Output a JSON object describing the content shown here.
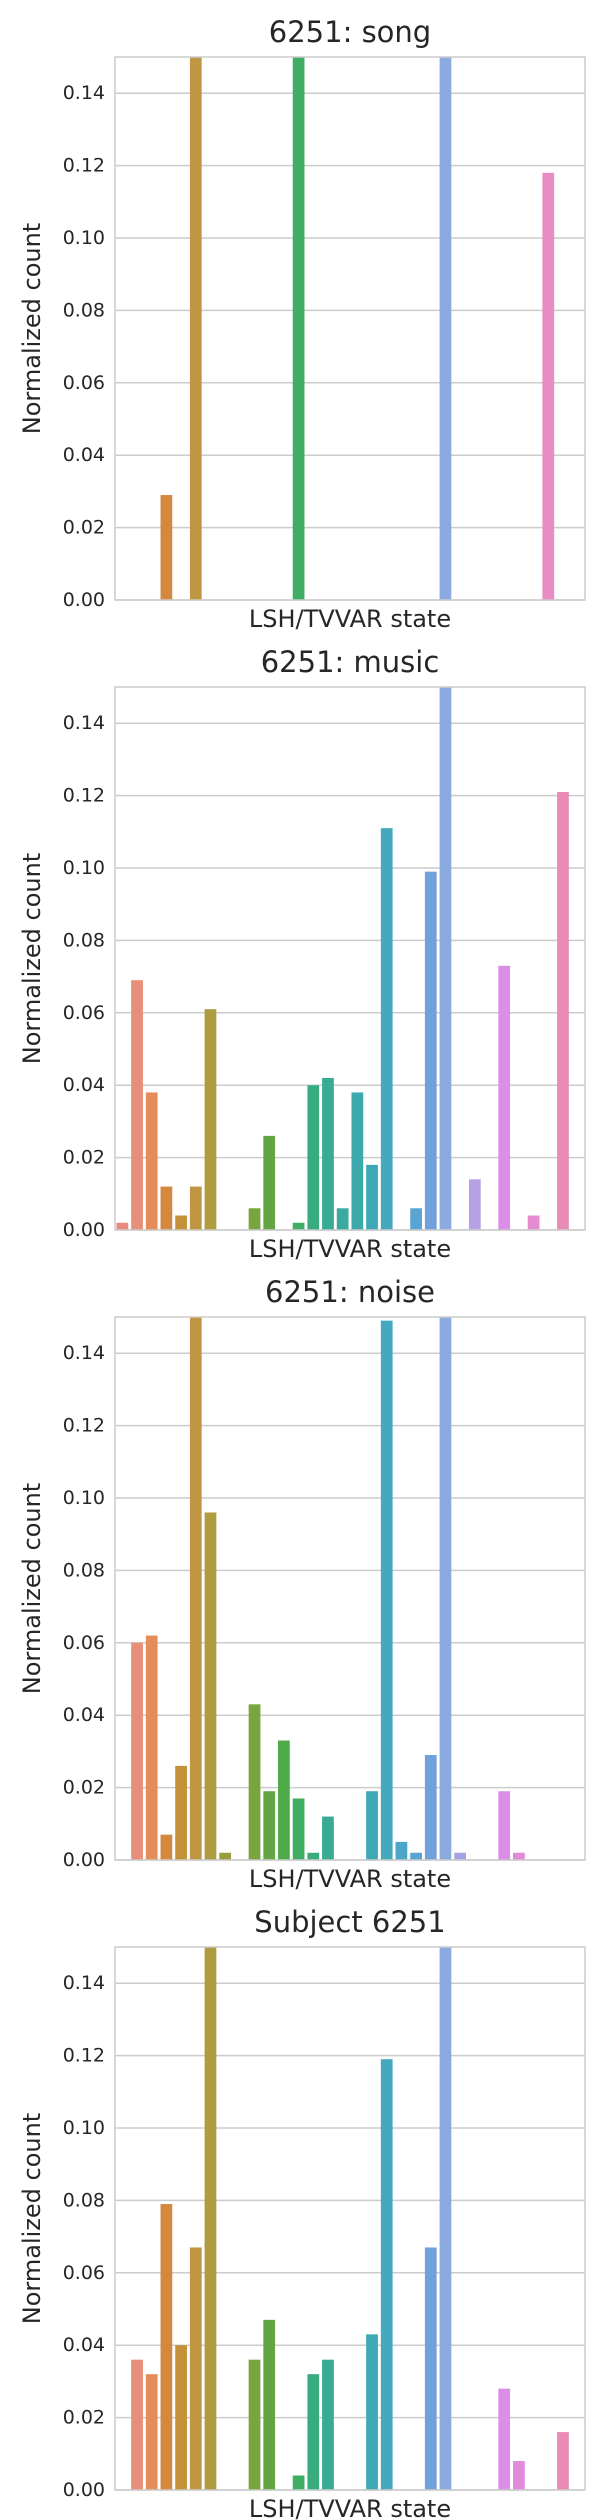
{
  "chart_data": [
    {
      "type": "bar",
      "title": "6251: song",
      "xlabel": "LSH/TVVAR state",
      "ylabel": "Normalized count",
      "ylim": [
        0,
        0.15
      ],
      "yticks": [
        "0.00",
        "0.02",
        "0.04",
        "0.06",
        "0.08",
        "0.10",
        "0.12",
        "0.14"
      ],
      "grid": true,
      "values": [
        0,
        0,
        0,
        0.029,
        0,
        0.15,
        0,
        0,
        0,
        0,
        0,
        0,
        0.15,
        0,
        0,
        0,
        0,
        0,
        0,
        0,
        0,
        0,
        0.15,
        0,
        0,
        0,
        0,
        0,
        0,
        0.118,
        0,
        0
      ]
    },
    {
      "type": "bar",
      "title": "6251: music",
      "xlabel": "LSH/TVVAR state",
      "ylabel": "Normalized count",
      "ylim": [
        0,
        0.15
      ],
      "yticks": [
        "0.00",
        "0.02",
        "0.04",
        "0.06",
        "0.08",
        "0.10",
        "0.12",
        "0.14"
      ],
      "grid": true,
      "values": [
        0.002,
        0.069,
        0.038,
        0.012,
        0.004,
        0.012,
        0.061,
        0,
        0,
        0.006,
        0.026,
        0,
        0.002,
        0.04,
        0.042,
        0.006,
        0.038,
        0.018,
        0.111,
        0,
        0.006,
        0.099,
        0.15,
        0,
        0.014,
        0,
        0.073,
        0,
        0.004,
        0,
        0.121,
        0
      ]
    },
    {
      "type": "bar",
      "title": "6251: noise",
      "xlabel": "LSH/TVVAR state",
      "ylabel": "Normalized count",
      "ylim": [
        0,
        0.15
      ],
      "yticks": [
        "0.00",
        "0.02",
        "0.04",
        "0.06",
        "0.08",
        "0.10",
        "0.12",
        "0.14"
      ],
      "grid": true,
      "values": [
        0,
        0.06,
        0.062,
        0.007,
        0.026,
        0.15,
        0.096,
        0.002,
        0,
        0.043,
        0.019,
        0.033,
        0.017,
        0.002,
        0.012,
        0,
        0,
        0.019,
        0.149,
        0.005,
        0.002,
        0.029,
        0.15,
        0.002,
        0,
        0,
        0.019,
        0.002,
        0,
        0,
        0,
        0
      ]
    },
    {
      "type": "bar",
      "title": "Subject 6251",
      "xlabel": "LSH/TVVAR state",
      "ylabel": "Normalized count",
      "ylim": [
        0,
        0.15
      ],
      "yticks": [
        "0.00",
        "0.02",
        "0.04",
        "0.06",
        "0.08",
        "0.10",
        "0.12",
        "0.14"
      ],
      "grid": true,
      "values": [
        0,
        0.036,
        0.032,
        0.079,
        0.04,
        0.067,
        0.15,
        0,
        0,
        0.036,
        0.047,
        0,
        0.004,
        0.032,
        0.036,
        0,
        0,
        0.043,
        0.119,
        0,
        0,
        0.067,
        0.15,
        0,
        0,
        0,
        0.028,
        0.008,
        0,
        0,
        0.016,
        0
      ]
    }
  ],
  "palette": [
    "#e8897d",
    "#e88f79",
    "#e48d5b",
    "#d4883f",
    "#c49039",
    "#bf9643",
    "#ae9c3f",
    "#999e3c",
    "#7fa23a",
    "#76a63d",
    "#61a641",
    "#4fab48",
    "#40ad64",
    "#39ac7f",
    "#39ab93",
    "#3baaa0",
    "#3ca9ac",
    "#3ea8b6",
    "#44a8be",
    "#4ba6c8",
    "#59a4d2",
    "#71a1db",
    "#8baae0",
    "#a3a2e2",
    "#b8a0e5",
    "#c99ae6",
    "#d98fe6",
    "#e18bdc",
    "#e58bd0",
    "#e88cc3",
    "#e88bb6",
    "#e88ba9"
  ]
}
